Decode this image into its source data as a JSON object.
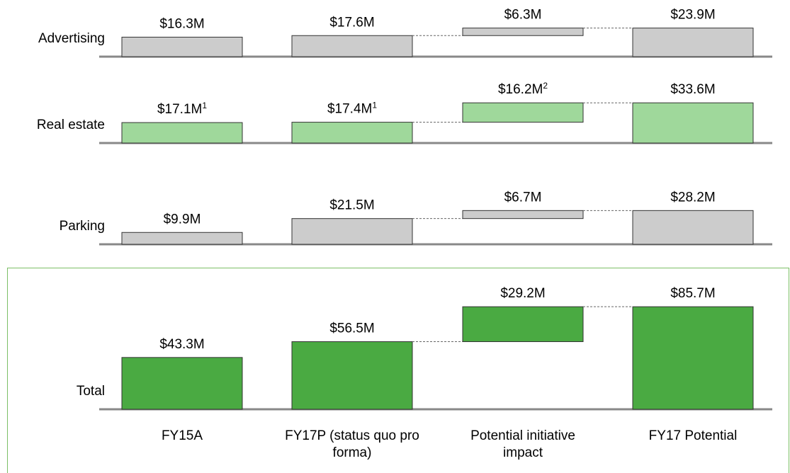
{
  "chart_data": [
    {
      "type": "waterfall",
      "name": "Advertising",
      "values": [
        16.3,
        17.6,
        6.3,
        23.9
      ],
      "value_labels": [
        "$16.3M",
        "$17.6M",
        "$6.3M",
        "$23.9M"
      ],
      "color": "#cccccc"
    },
    {
      "type": "waterfall",
      "name": "Real estate",
      "values": [
        17.1,
        17.4,
        16.2,
        33.6
      ],
      "value_labels": [
        "$17.1M",
        "$17.4M",
        "$16.2M",
        "$33.6M"
      ],
      "value_label_notes": [
        "1",
        "1",
        "2",
        null
      ],
      "color": "#9fd89b"
    },
    {
      "type": "waterfall",
      "name": "Parking",
      "values": [
        9.9,
        21.5,
        6.7,
        28.2
      ],
      "value_labels": [
        "$9.9M",
        "$21.5M",
        "$6.7M",
        "$28.2M"
      ],
      "color": "#cccccc"
    },
    {
      "type": "waterfall",
      "name": "Total",
      "values": [
        43.3,
        56.5,
        29.2,
        85.7
      ],
      "value_labels": [
        "$43.3M",
        "$56.5M",
        "$29.2M",
        "$85.7M"
      ],
      "color": "#4aaa42",
      "categories": [
        "FY15A",
        "FY17P (status quo pro forma)",
        "Potential initiative impact",
        "FY17 Potential"
      ]
    }
  ]
}
